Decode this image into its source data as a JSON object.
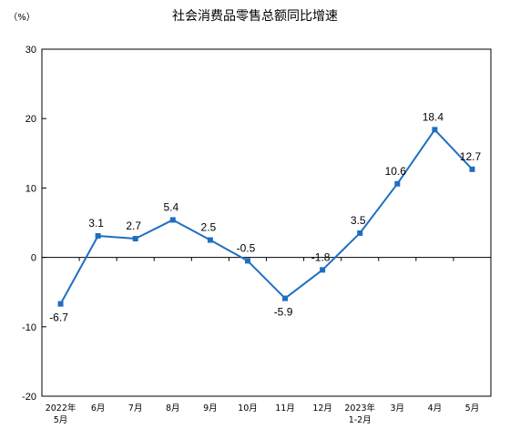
{
  "chart_data": {
    "type": "line",
    "title": "社会消费品零售总额同比增速",
    "unit_label": "（%）",
    "ylim": [
      -20,
      30
    ],
    "yticks": [
      30,
      20,
      10,
      0,
      -10,
      -20
    ],
    "categories": [
      [
        "2022年",
        "5月"
      ],
      [
        "6月"
      ],
      [
        "7月"
      ],
      [
        "8月"
      ],
      [
        "9月"
      ],
      [
        "10月"
      ],
      [
        "11月"
      ],
      [
        "12月"
      ],
      [
        "2023年",
        "1-2月"
      ],
      [
        "3月"
      ],
      [
        "4月"
      ],
      [
        "5月"
      ]
    ],
    "series": [
      {
        "values": [
          -6.7,
          3.1,
          2.7,
          5.4,
          2.5,
          -0.5,
          -5.9,
          -1.8,
          3.5,
          10.6,
          18.4,
          12.7
        ],
        "labels": [
          "-6.7",
          "3.1",
          "2.7",
          "5.4",
          "2.5",
          "-0.5",
          "-5.9",
          "-1.8",
          "3.5",
          "10.6",
          "18.4",
          "12.7"
        ]
      }
    ],
    "line_color": "#1f6fc0",
    "marker_color": "#1f6fc0",
    "grid": false,
    "legend": "none"
  }
}
